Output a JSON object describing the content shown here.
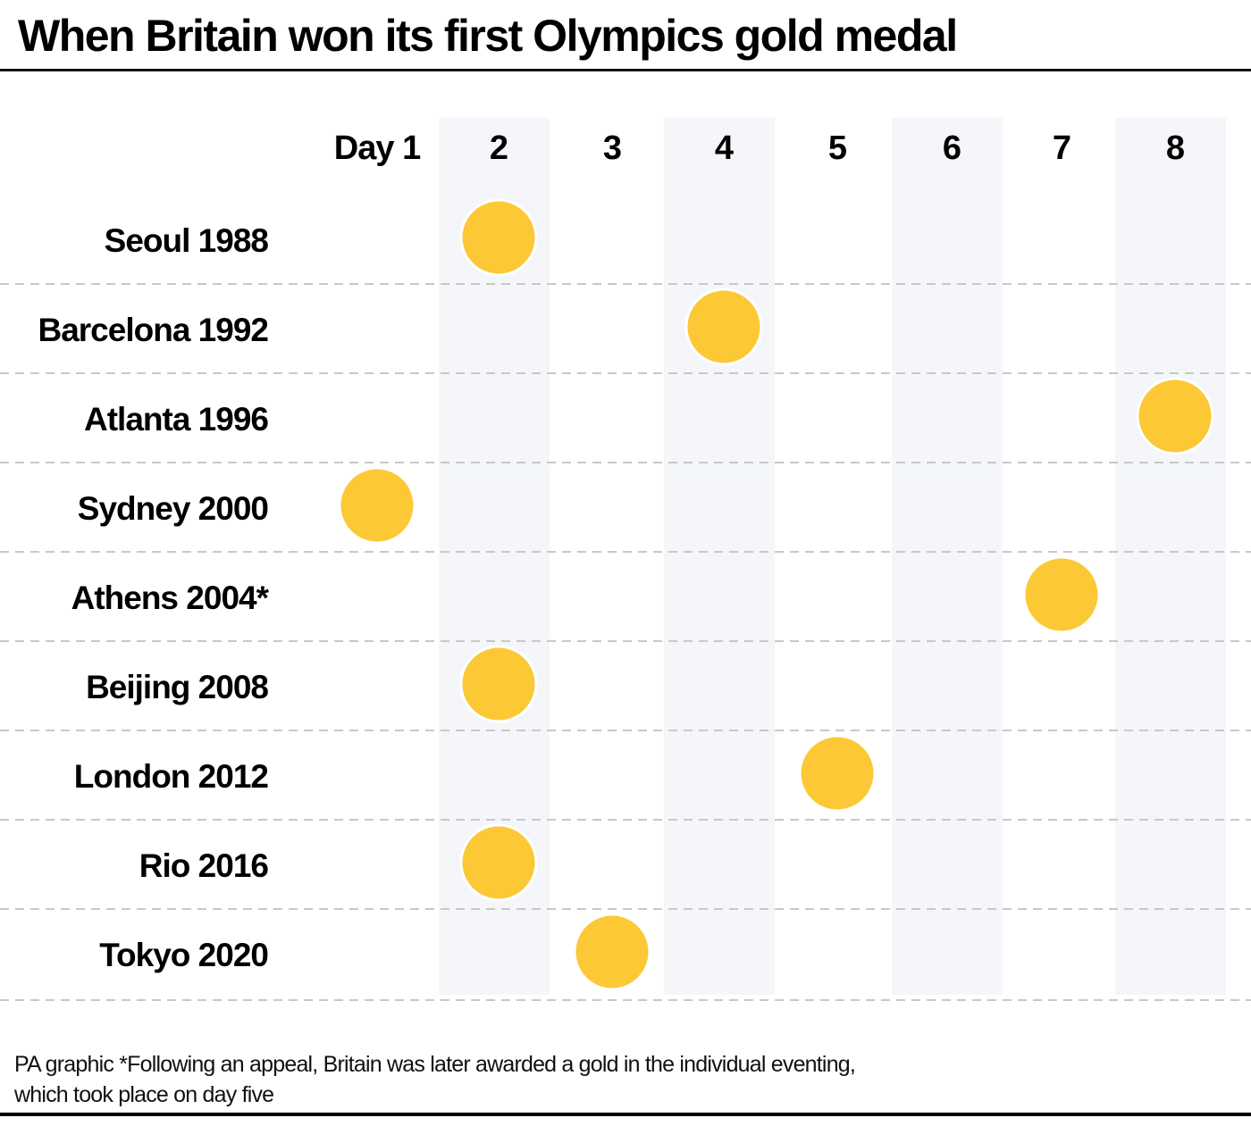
{
  "title": "When Britain won its first Olympics gold medal",
  "footnote": {
    "line1": "PA graphic *Following an appeal, Britain was later awarded a gold in the individual eventing,",
    "line2": "which took place on day five"
  },
  "colors": {
    "medal": "#FDC835",
    "column_shade": "#F4F6FA",
    "gridline": "#C8C8C8",
    "text": "#000000"
  },
  "chart_data": {
    "type": "scatter",
    "title": "When Britain won its first Olympics gold medal",
    "xlabel": "",
    "ylabel": "",
    "x_tick_labels": [
      "Day 1",
      "2",
      "3",
      "4",
      "5",
      "6",
      "7",
      "8"
    ],
    "x_values": [
      1,
      2,
      3,
      4,
      5,
      6,
      7,
      8
    ],
    "categories": [
      "Seoul 1988",
      "Barcelona 1992",
      "Atlanta 1996",
      "Sydney 2000",
      "Athens 2004*",
      "Beijing 2008",
      "London 2012",
      "Rio 2016",
      "Tokyo 2020"
    ],
    "values": [
      2,
      4,
      8,
      1,
      7,
      2,
      5,
      2,
      3
    ],
    "shaded_columns": [
      2,
      4,
      6,
      8
    ],
    "xlim": [
      1,
      8
    ],
    "grid": true,
    "legend": "none"
  }
}
